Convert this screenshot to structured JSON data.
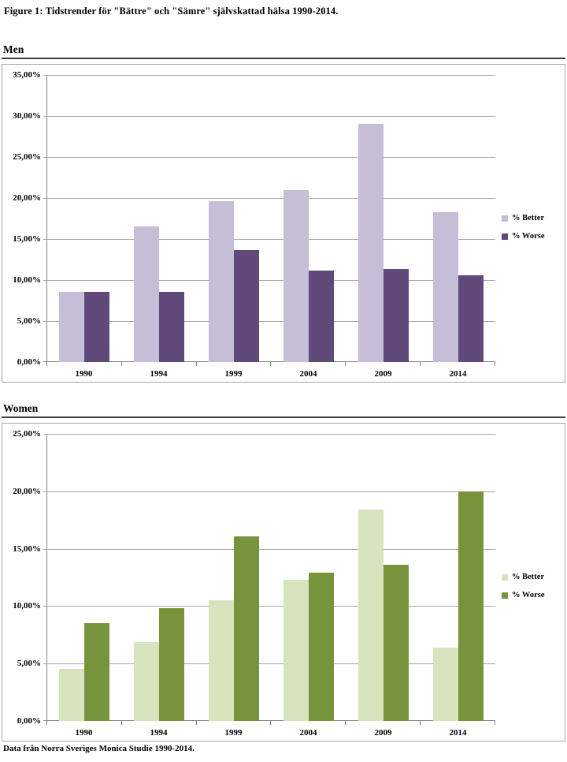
{
  "page": {
    "title": "Figure 1: Tidstrender för \"Bättre\" och \"Sämre\" självskattad hälsa 1990-2014.",
    "footer": "Data från Norra Sveriges Monica Studie 1990-2014."
  },
  "colors": {
    "gridline": "#a6a6a6",
    "axis": "#808080",
    "chart_border": "#a6a6a6",
    "heading_rule": "#3d3d3d"
  },
  "chart_data": [
    {
      "type": "bar",
      "title": "Men",
      "categories": [
        "1990",
        "1994",
        "1999",
        "2004",
        "2009",
        "2014"
      ],
      "series": [
        {
          "name": "% Better",
          "color": "#c6bdd7",
          "values": [
            8.6,
            16.5,
            19.6,
            21.0,
            29.0,
            18.3
          ]
        },
        {
          "name": "% Worse",
          "color": "#604a7b",
          "values": [
            8.6,
            8.6,
            13.7,
            11.2,
            11.3,
            10.6
          ]
        }
      ],
      "ylim": [
        0,
        35
      ],
      "ytick_step": 5,
      "ytick_labels": [
        "0,00%",
        "5,00%",
        "10,00%",
        "15,00%",
        "20,00%",
        "25,00%",
        "30,00%",
        "35,00%"
      ],
      "grid": true,
      "legend_position": "right"
    },
    {
      "type": "bar",
      "title": "Women",
      "categories": [
        "1990",
        "1994",
        "1999",
        "2004",
        "2009",
        "2014"
      ],
      "series": [
        {
          "name": "% Better",
          "color": "#d7e4bd",
          "values": [
            4.5,
            6.9,
            10.5,
            12.3,
            18.4,
            6.4
          ]
        },
        {
          "name": "% Worse",
          "color": "#77933c",
          "values": [
            8.5,
            9.8,
            16.1,
            12.9,
            13.6,
            20.0
          ]
        }
      ],
      "ylim": [
        0,
        25
      ],
      "ytick_step": 5,
      "ytick_labels": [
        "0,00%",
        "5,00%",
        "10,00%",
        "15,00%",
        "20,00%",
        "25,00%"
      ],
      "grid": true,
      "legend_position": "right"
    }
  ]
}
